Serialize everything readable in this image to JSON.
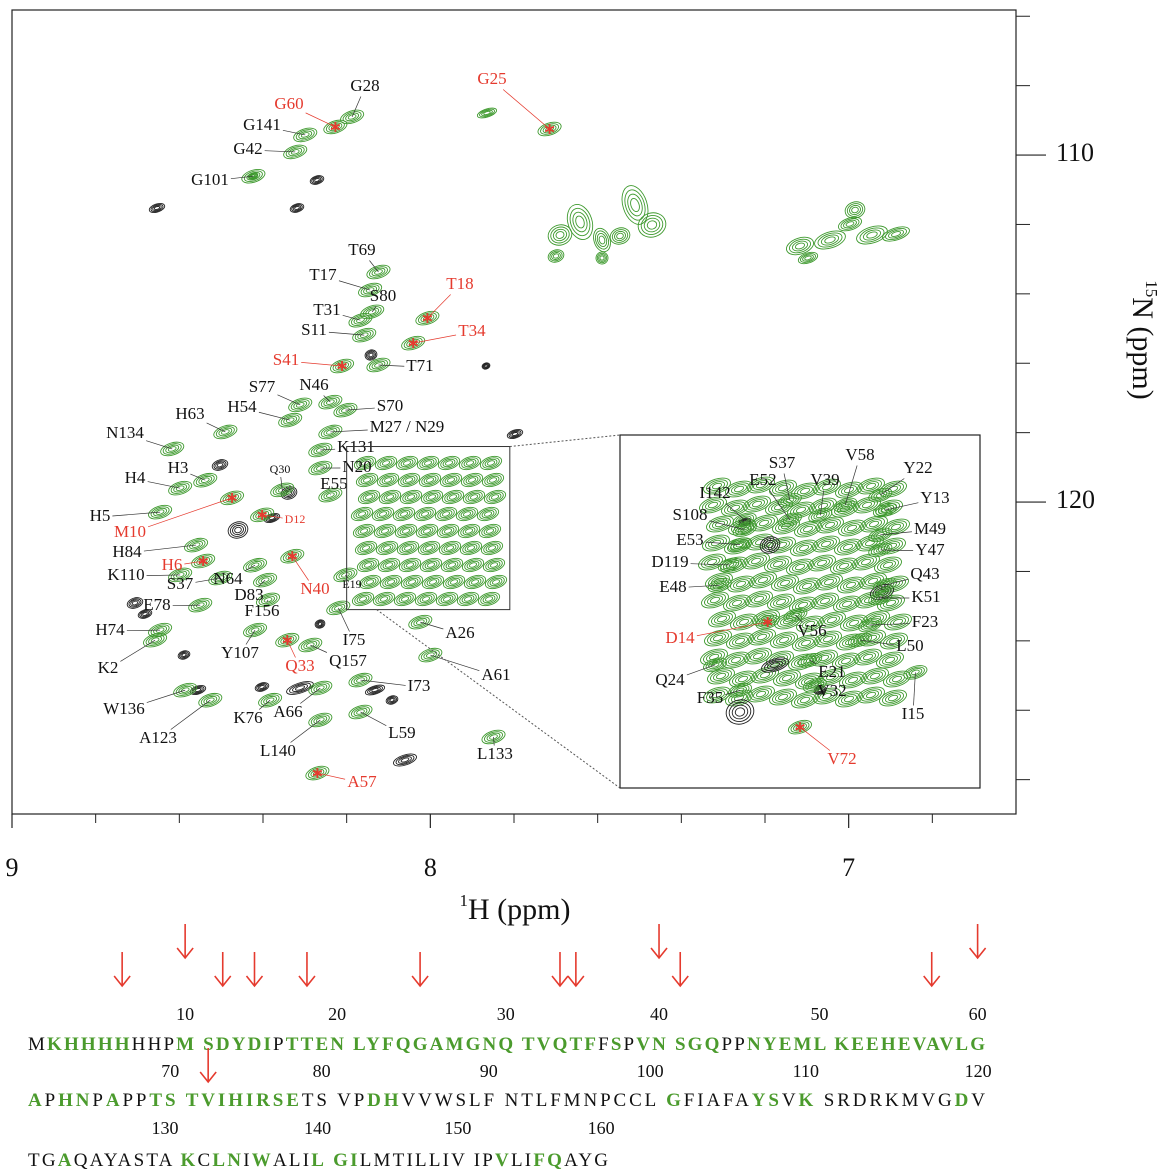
{
  "chart_data": {
    "type": "nmr",
    "x_label_sup": "1",
    "x_label": "H (ppm)",
    "y_label_sup": "15",
    "y_label": "N (ppm)",
    "xlim": [
      9,
      6.6
    ],
    "xticks": [
      9,
      8,
      7
    ],
    "xminor": [
      8.8,
      8.6,
      8.4,
      8.2,
      7.8,
      7.6,
      7.4,
      7.2,
      6.8
    ],
    "ylim": [
      105.82,
      128.99
    ],
    "yticks": [
      110,
      120
    ],
    "yminor": [
      106,
      108,
      112,
      114,
      116,
      118,
      122,
      124,
      126,
      128
    ],
    "contour_color": "#3f9a2f",
    "label_color": "#111111",
    "highlight_color": "#e53a2e",
    "peaks": [
      {
        "label": "G28",
        "h": 8.187,
        "n": 108.9,
        "highlight": false
      },
      {
        "label": "G60",
        "h": 8.227,
        "n": 109.19,
        "highlight": true
      },
      {
        "label": "G25",
        "h": 7.715,
        "n": 109.25,
        "highlight": true
      },
      {
        "label": "G141",
        "h": 8.299,
        "n": 109.42,
        "highlight": false
      },
      {
        "label": "G42",
        "h": 8.323,
        "n": 109.91,
        "highlight": false
      },
      {
        "label": "G101",
        "h": 8.423,
        "n": 110.61,
        "highlight": false
      },
      {
        "label": "T69",
        "h": 8.124,
        "n": 113.37,
        "highlight": false
      },
      {
        "label": "T17",
        "h": 8.144,
        "n": 113.89,
        "highlight": false
      },
      {
        "label": "T18",
        "h": 8.007,
        "n": 114.7,
        "highlight": true
      },
      {
        "label": "S80",
        "h": 8.139,
        "n": 114.52,
        "highlight": false
      },
      {
        "label": "T31",
        "h": 8.167,
        "n": 114.76,
        "highlight": false
      },
      {
        "label": "T34",
        "h": 8.041,
        "n": 115.42,
        "highlight": true
      },
      {
        "label": "S11",
        "h": 8.158,
        "n": 115.19,
        "highlight": false
      },
      {
        "label": "S41",
        "h": 8.211,
        "n": 116.08,
        "highlight": true
      },
      {
        "label": "T71",
        "h": 8.124,
        "n": 116.05,
        "highlight": false
      },
      {
        "label": "S77",
        "h": 8.311,
        "n": 117.2,
        "highlight": false
      },
      {
        "label": "N46",
        "h": 8.239,
        "n": 117.12,
        "highlight": false
      },
      {
        "label": "H54",
        "h": 8.335,
        "n": 117.64,
        "highlight": false
      },
      {
        "label": "S70",
        "h": 8.203,
        "n": 117.35,
        "highlight": false
      },
      {
        "label": "H63",
        "h": 8.49,
        "n": 117.98,
        "highlight": false
      },
      {
        "label": "M27 / N29",
        "h": 8.239,
        "n": 117.98,
        "highlight": false
      },
      {
        "label": "N134",
        "h": 8.617,
        "n": 118.47,
        "highlight": false
      },
      {
        "label": "K131",
        "h": 8.263,
        "n": 118.5,
        "highlight": false
      },
      {
        "label": "H4",
        "h": 8.598,
        "n": 119.6,
        "highlight": false
      },
      {
        "label": "H3",
        "h": 8.538,
        "n": 119.37,
        "highlight": false
      },
      {
        "label": "Q30",
        "h": 8.354,
        "n": 119.65,
        "highlight": false
      },
      {
        "label": "N20",
        "h": 8.263,
        "n": 119.02,
        "highlight": false
      },
      {
        "label": "E55",
        "h": 8.239,
        "n": 119.8,
        "highlight": false
      },
      {
        "label": "H5",
        "h": 8.646,
        "n": 120.29,
        "highlight": false
      },
      {
        "label": "M10",
        "h": 8.474,
        "n": 119.88,
        "highlight": true
      },
      {
        "label": "D12",
        "h": 8.402,
        "n": 120.37,
        "highlight": true
      },
      {
        "label": "H84",
        "h": 8.56,
        "n": 121.24,
        "highlight": false
      },
      {
        "label": "H6",
        "h": 8.543,
        "n": 121.7,
        "highlight": true
      },
      {
        "label": "K110",
        "h": 8.598,
        "n": 122.1,
        "highlight": false
      },
      {
        "label": "N40",
        "h": 8.33,
        "n": 121.56,
        "highlight": true
      },
      {
        "label": "S37",
        "h": 8.502,
        "n": 122.19,
        "highlight": false
      },
      {
        "label": "N64",
        "h": 8.419,
        "n": 121.82,
        "highlight": false
      },
      {
        "label": "E19",
        "h": 8.203,
        "n": 122.1,
        "highlight": false
      },
      {
        "label": "D83",
        "h": 8.395,
        "n": 122.25,
        "highlight": false
      },
      {
        "label": "E78",
        "h": 8.55,
        "n": 122.97,
        "highlight": false
      },
      {
        "label": "F156",
        "h": 8.388,
        "n": 122.82,
        "highlight": false
      },
      {
        "label": "H74",
        "h": 8.646,
        "n": 123.69,
        "highlight": false
      },
      {
        "label": "I75",
        "h": 8.22,
        "n": 123.05,
        "highlight": false
      },
      {
        "label": "Q33",
        "h": 8.342,
        "n": 123.98,
        "highlight": true
      },
      {
        "label": "A26",
        "h": 8.024,
        "n": 123.46,
        "highlight": false
      },
      {
        "label": "K2",
        "h": 8.658,
        "n": 123.98,
        "highlight": false
      },
      {
        "label": "Y107",
        "h": 8.419,
        "n": 123.69,
        "highlight": false
      },
      {
        "label": "Q157",
        "h": 8.287,
        "n": 124.12,
        "highlight": false
      },
      {
        "label": "A61",
        "h": 8.0,
        "n": 124.41,
        "highlight": false
      },
      {
        "label": "I73",
        "h": 8.167,
        "n": 125.13,
        "highlight": false
      },
      {
        "label": "W136",
        "h": 8.586,
        "n": 125.42,
        "highlight": false
      },
      {
        "label": "K76",
        "h": 8.383,
        "n": 125.71,
        "highlight": false
      },
      {
        "label": "A66",
        "h": 8.263,
        "n": 125.36,
        "highlight": false
      },
      {
        "label": "A123",
        "h": 8.526,
        "n": 125.71,
        "highlight": false
      },
      {
        "label": "L59",
        "h": 8.167,
        "n": 126.05,
        "highlight": false
      },
      {
        "label": "L140",
        "h": 8.263,
        "n": 126.28,
        "highlight": false
      },
      {
        "label": "L133",
        "h": 7.849,
        "n": 126.77,
        "highlight": false
      },
      {
        "label": "A57",
        "h": 8.27,
        "n": 127.81,
        "highlight": true
      }
    ],
    "inset": {
      "xlim": [
        8.2,
        7.81
      ],
      "ylim": [
        118.4,
        123.1
      ],
      "peaks": [
        {
          "label": "S37",
          "h": 8.016,
          "n": 119.27,
          "highlight": false
        },
        {
          "label": "V58",
          "h": 7.956,
          "n": 119.33,
          "highlight": false
        },
        {
          "label": "Y22",
          "h": 7.918,
          "n": 119.2,
          "highlight": false
        },
        {
          "label": "V39",
          "h": 7.983,
          "n": 119.47,
          "highlight": false
        },
        {
          "label": "E52",
          "h": 8.016,
          "n": 119.53,
          "highlight": false
        },
        {
          "label": "I142",
          "h": 8.065,
          "n": 119.53,
          "highlight": false
        },
        {
          "label": "Y13",
          "h": 7.913,
          "n": 119.4,
          "highlight": false
        },
        {
          "label": "S108",
          "h": 8.065,
          "n": 119.66,
          "highlight": false
        },
        {
          "label": "M49",
          "h": 7.918,
          "n": 119.73,
          "highlight": false
        },
        {
          "label": "E53",
          "h": 8.07,
          "n": 119.86,
          "highlight": false
        },
        {
          "label": "Y47",
          "h": 7.918,
          "n": 119.93,
          "highlight": false
        },
        {
          "label": "D119",
          "h": 8.081,
          "n": 120.13,
          "highlight": false
        },
        {
          "label": "Q43",
          "h": 7.913,
          "n": 120.4,
          "highlight": false
        },
        {
          "label": "E48",
          "h": 8.092,
          "n": 120.4,
          "highlight": false
        },
        {
          "label": "K51",
          "h": 7.918,
          "n": 120.57,
          "highlight": false
        },
        {
          "label": "D14",
          "h": 8.04,
          "n": 120.89,
          "highlight": true
        },
        {
          "label": "V56",
          "h": 8.01,
          "n": 120.8,
          "highlight": false
        },
        {
          "label": "F23",
          "h": 7.929,
          "n": 120.93,
          "highlight": false
        },
        {
          "label": "L50",
          "h": 7.94,
          "n": 121.13,
          "highlight": false
        },
        {
          "label": "Q24",
          "h": 8.097,
          "n": 121.46,
          "highlight": false
        },
        {
          "label": "E21",
          "h": 7.994,
          "n": 121.4,
          "highlight": false
        },
        {
          "label": "F35",
          "h": 8.07,
          "n": 121.8,
          "highlight": false
        },
        {
          "label": "V32",
          "h": 7.989,
          "n": 121.73,
          "highlight": false
        },
        {
          "label": "I15",
          "h": 7.88,
          "n": 121.56,
          "highlight": false
        },
        {
          "label": "V72",
          "h": 8.005,
          "n": 122.29,
          "highlight": true
        }
      ]
    },
    "sequence": {
      "green": "#4b9b2d",
      "arrow_color": "#e53a2e",
      "lines": [
        [
          {
            "text": "M",
            "green": false
          },
          {
            "text": "KHHHH",
            "green": true
          },
          {
            "text": "HHP",
            "green": false
          },
          {
            "text": "M SDYDI",
            "green": true
          },
          {
            "text": "P",
            "green": false
          },
          {
            "text": "TTEN LYFQGAMGNQ TVQTF",
            "green": true
          },
          {
            "text": "F",
            "green": false
          },
          {
            "text": "S",
            "green": true
          },
          {
            "text": "P",
            "green": false
          },
          {
            "text": "VN SGQ",
            "green": true
          },
          {
            "text": "PP",
            "green": false
          },
          {
            "text": "NYEML KEEHEVAVLG",
            "green": true
          }
        ],
        [
          {
            "text": "A",
            "green": true
          },
          {
            "text": "P",
            "green": false
          },
          {
            "text": "HN",
            "green": true
          },
          {
            "text": "P",
            "green": false
          },
          {
            "text": "A",
            "green": true
          },
          {
            "text": "PP",
            "green": false
          },
          {
            "text": "TS TVIHIRSE",
            "green": true
          },
          {
            "text": "TS VP",
            "green": false
          },
          {
            "text": "DH",
            "green": true
          },
          {
            "text": "VVWSLF NTLFMNPCCL ",
            "green": false
          },
          {
            "text": "G",
            "green": true
          },
          {
            "text": "FIAFA",
            "green": false
          },
          {
            "text": "YS",
            "green": true
          },
          {
            "text": "V",
            "green": false
          },
          {
            "text": "K",
            "green": true
          },
          {
            "text": " SRDRKMVG",
            "green": false
          },
          {
            "text": "D",
            "green": true
          },
          {
            "text": "V",
            "green": false
          }
        ],
        [
          {
            "text": "TG",
            "green": false
          },
          {
            "text": "A",
            "green": true
          },
          {
            "text": "QAYASTA ",
            "green": false
          },
          {
            "text": "K",
            "green": true
          },
          {
            "text": "C",
            "green": false
          },
          {
            "text": "LN",
            "green": true
          },
          {
            "text": "I",
            "green": false
          },
          {
            "text": "W",
            "green": true
          },
          {
            "text": "ALI",
            "green": false
          },
          {
            "text": "L",
            "green": true
          },
          {
            "text": " ",
            "green": false
          },
          {
            "text": "GI",
            "green": true
          },
          {
            "text": "LMTILLIV IP",
            "green": false
          },
          {
            "text": "V",
            "green": true
          },
          {
            "text": "LI",
            "green": false
          },
          {
            "text": "FQ",
            "green": true
          },
          {
            "text": "AYG",
            "green": false
          }
        ]
      ],
      "numbers": [
        [
          10,
          20,
          30,
          40,
          50,
          60
        ],
        [
          70,
          80,
          90,
          100,
          110,
          120
        ],
        [
          130,
          140,
          150,
          160
        ]
      ],
      "arrows": [
        6,
        10,
        12,
        14,
        18,
        25,
        33,
        34,
        40,
        41,
        57,
        60,
        72
      ]
    }
  }
}
